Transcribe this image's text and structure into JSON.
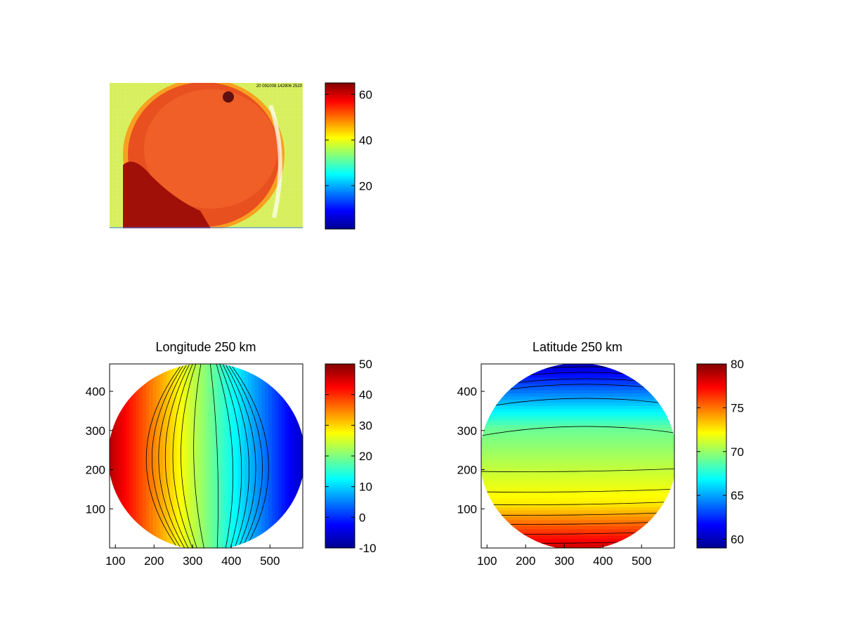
{
  "figure": {
    "background": "#ffffff"
  },
  "chart_data": [
    {
      "type": "heatmap",
      "title": "",
      "description": "raw camera image, auroral all-sky frame",
      "image_corner_text": "20 091008 142906 2520",
      "colorbar": {
        "range": [
          1,
          65
        ],
        "ticks": [
          20,
          40,
          60
        ],
        "colormap": "jet"
      },
      "show_axes": false
    },
    {
      "type": "heatmap",
      "title": "Longitude 250 km",
      "xlim": [
        85,
        585
      ],
      "ylim": [
        0,
        470
      ],
      "xticks": [
        100,
        200,
        300,
        400,
        500
      ],
      "yticks": [
        100,
        200,
        300,
        400
      ],
      "colorbar": {
        "range": [
          -10,
          50
        ],
        "ticks": [
          -10,
          0,
          10,
          20,
          30,
          40,
          50
        ],
        "colormap": "jet"
      },
      "contour_levels": [
        -4,
        0,
        4,
        8,
        12,
        16,
        20,
        24,
        28,
        32,
        36,
        40,
        44
      ],
      "field": "longitude"
    },
    {
      "type": "heatmap",
      "title": "Latitude 250 km",
      "xlim": [
        85,
        585
      ],
      "ylim": [
        0,
        470
      ],
      "xticks": [
        100,
        200,
        300,
        400,
        500
      ],
      "yticks": [
        100,
        200,
        300,
        400
      ],
      "colorbar": {
        "range": [
          59,
          80
        ],
        "ticks": [
          60,
          65,
          70,
          75,
          80
        ],
        "colormap": "jet"
      },
      "contour_levels": [
        61,
        62,
        63,
        64,
        65,
        66,
        67,
        68,
        69,
        70,
        71,
        72,
        73,
        74,
        75
      ],
      "field": "latitude"
    }
  ]
}
